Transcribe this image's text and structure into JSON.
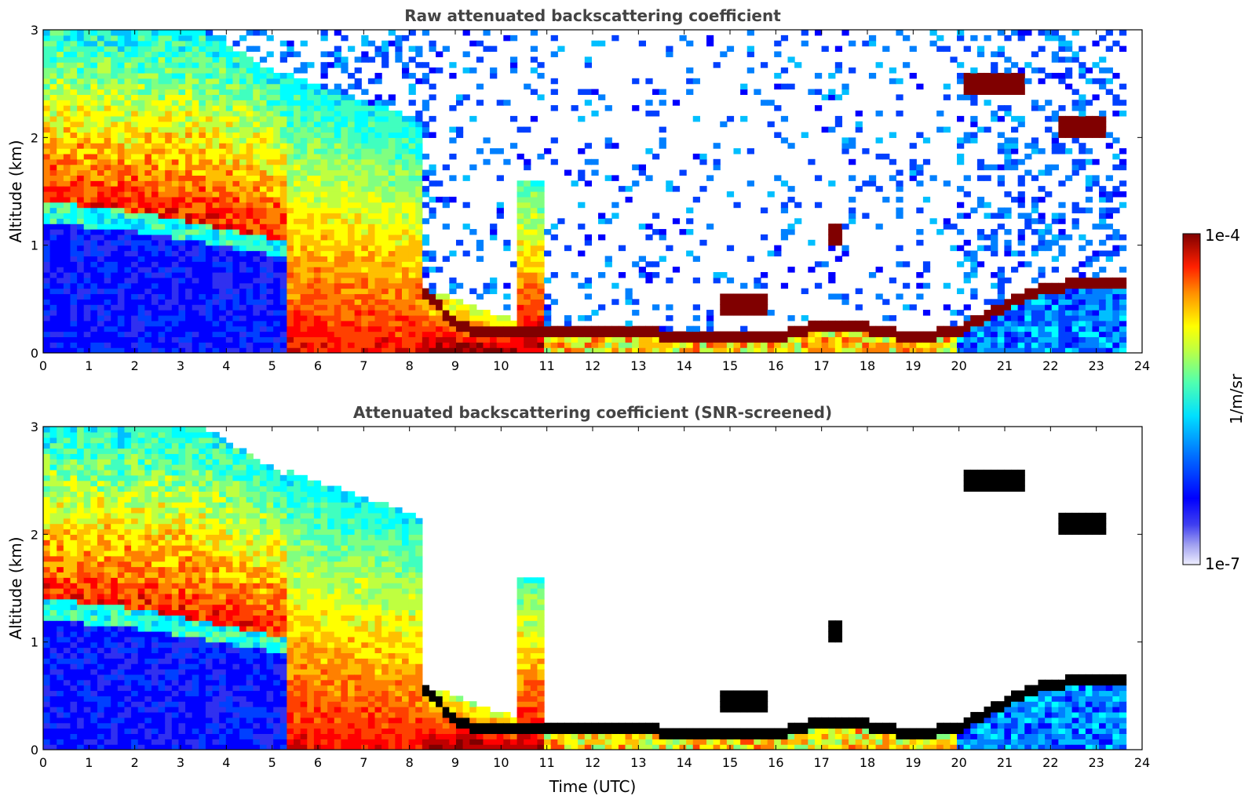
{
  "chart_data": [
    {
      "type": "heatmap",
      "title": "Raw attenuated backscattering coefficient",
      "xlabel": "",
      "ylabel": "Altitude (km)",
      "xlim": [
        0,
        24
      ],
      "ylim": [
        0,
        3
      ],
      "x_ticks": [
        "0",
        "1",
        "2",
        "3",
        "4",
        "5",
        "6",
        "7",
        "8",
        "9",
        "10",
        "11",
        "12",
        "13",
        "14",
        "15",
        "16",
        "17",
        "18",
        "19",
        "20",
        "21",
        "22",
        "23",
        "24"
      ],
      "y_ticks": [
        "0",
        "1",
        "2",
        "3"
      ],
      "colorscale": "jet",
      "data_end_hour": 23.65,
      "features": {
        "boundary_layer_top_km": [
          {
            "t": 0.0,
            "h": 1.35
          },
          {
            "t": 2.0,
            "h": 1.25
          },
          {
            "t": 4.0,
            "h": 1.1
          },
          {
            "t": 5.2,
            "h": 1.0
          },
          {
            "t": 6.5,
            "h": 0.75
          },
          {
            "t": 8.3,
            "h": 0.6
          },
          {
            "t": 9.0,
            "h": 0.25
          },
          {
            "t": 10.0,
            "h": 0.18
          },
          {
            "t": 11.0,
            "h": 0.18
          },
          {
            "t": 13.0,
            "h": 0.2
          },
          {
            "t": 14.0,
            "h": 0.15
          },
          {
            "t": 16.0,
            "h": 0.15
          },
          {
            "t": 17.3,
            "h": 0.28
          },
          {
            "t": 19.0,
            "h": 0.15
          },
          {
            "t": 20.0,
            "h": 0.2
          },
          {
            "t": 21.5,
            "h": 0.55
          },
          {
            "t": 22.5,
            "h": 0.65
          },
          {
            "t": 23.65,
            "h": 0.65
          }
        ],
        "cloud_layers": [
          {
            "t_start": 20.1,
            "t_end": 21.4,
            "h": 2.5
          },
          {
            "t_start": 22.1,
            "t_end": 23.2,
            "h": 2.1
          },
          {
            "t_start": 14.8,
            "t_end": 15.8,
            "h": 0.45
          },
          {
            "t_start": 17.2,
            "t_end": 17.4,
            "h": 1.1
          }
        ]
      }
    },
    {
      "type": "heatmap",
      "title": "Attenuated backscattering coefficient (SNR-screened)",
      "xlabel": "Time (UTC)",
      "ylabel": "Altitude (km)",
      "xlim": [
        0,
        24
      ],
      "ylim": [
        0,
        3
      ],
      "x_ticks": [
        "0",
        "1",
        "2",
        "3",
        "4",
        "5",
        "6",
        "7",
        "8",
        "9",
        "10",
        "11",
        "12",
        "13",
        "14",
        "15",
        "16",
        "17",
        "18",
        "19",
        "20",
        "21",
        "22",
        "23",
        "24"
      ],
      "y_ticks": [
        "0",
        "1",
        "2",
        "3"
      ],
      "colorscale": "jet",
      "data_end_hour": 23.65
    }
  ],
  "colorbar": {
    "label": "1/m/sr",
    "max_label": "1e-4",
    "min_label": "1e-7",
    "colors": [
      "#eeeeff",
      "#c8c8f8",
      "#9a9af0",
      "#6a6ae8",
      "#3030f0",
      "#0000ff",
      "#0040ff",
      "#0080ff",
      "#00bfff",
      "#00ffff",
      "#40ffbf",
      "#80ff80",
      "#bfff40",
      "#ffff00",
      "#ffbf00",
      "#ff8000",
      "#ff4000",
      "#ff0000",
      "#bf0000",
      "#800000"
    ]
  }
}
